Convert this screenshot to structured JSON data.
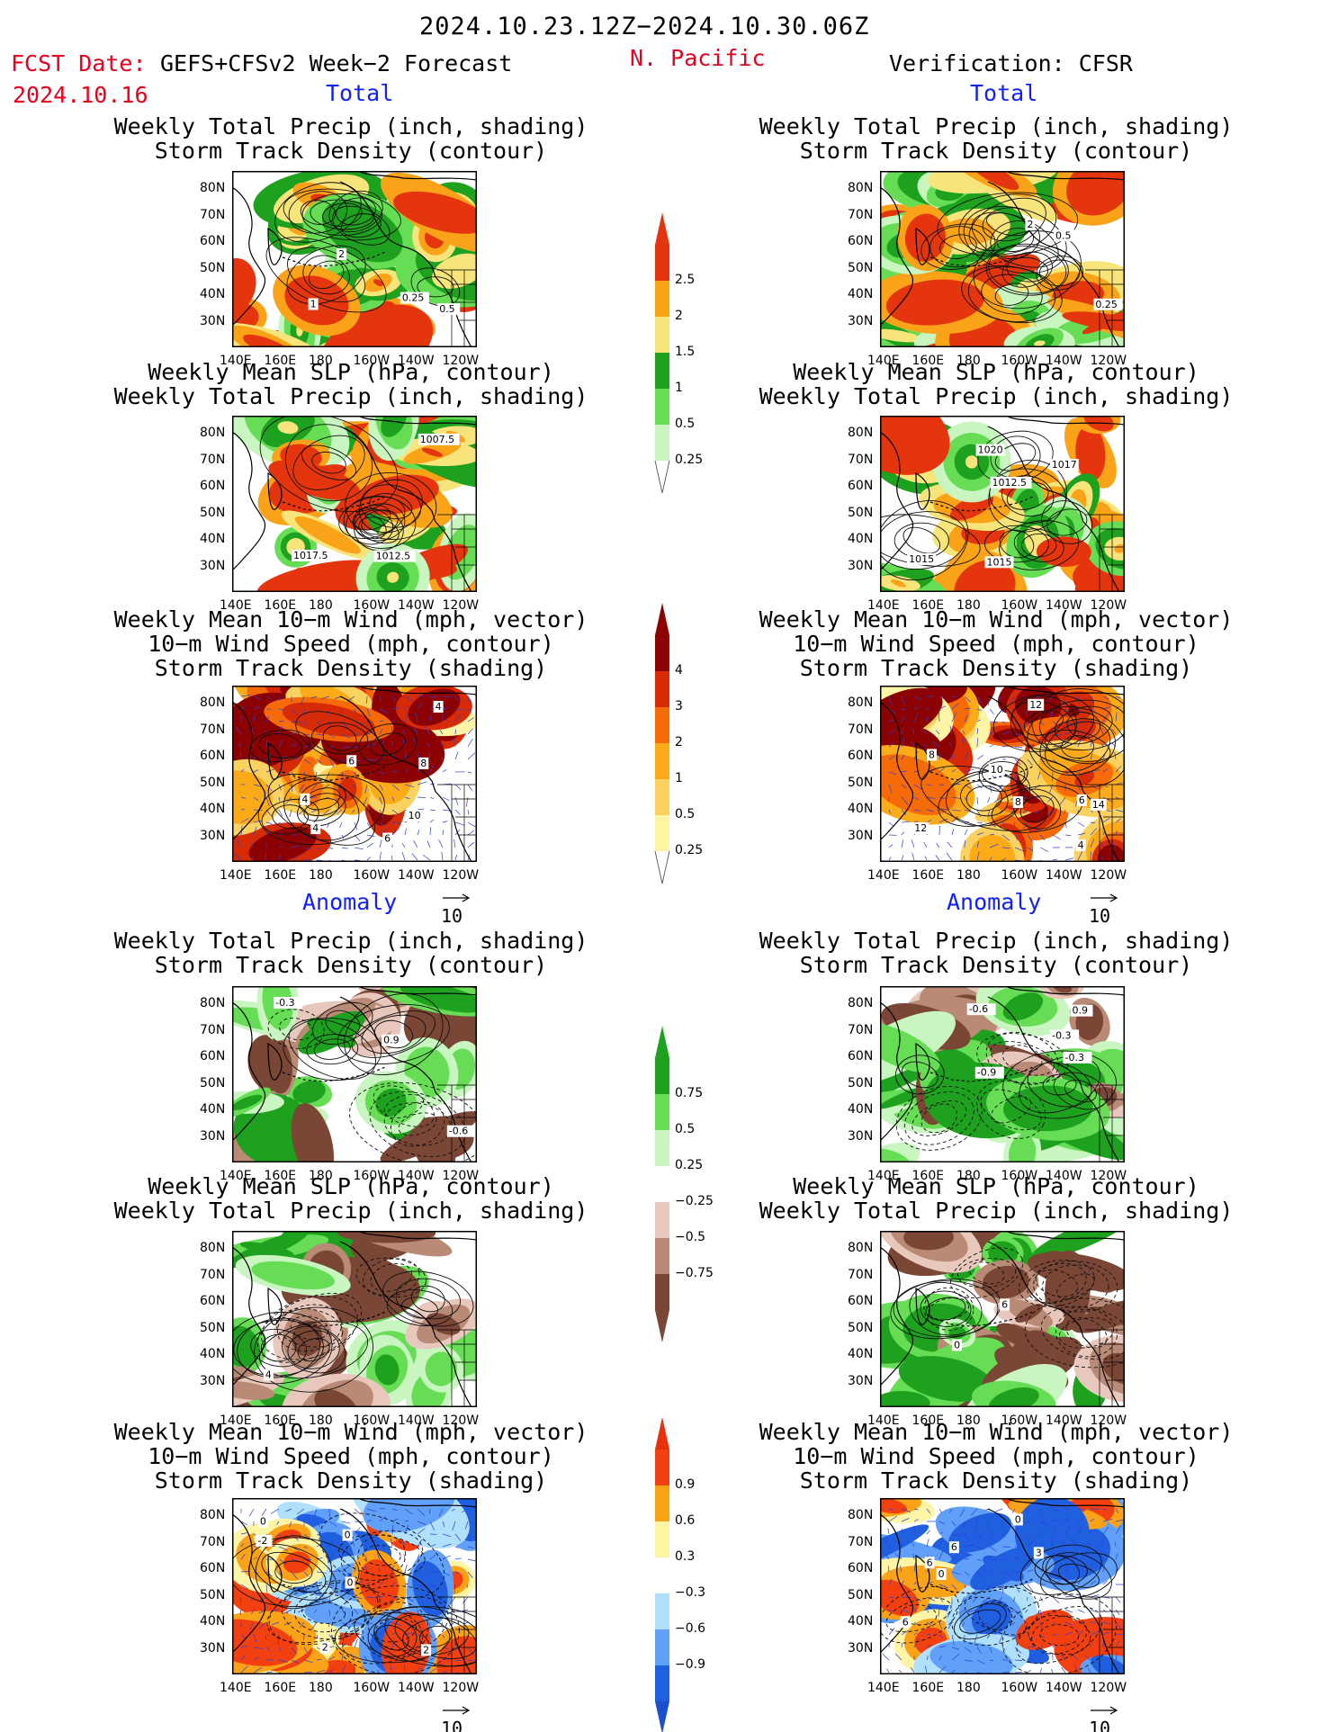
{
  "header": {
    "date_range": "2024.10.23.12Z−2024.10.30.06Z",
    "fcst_label": "FCST Date:",
    "forecast_name": "GEFS+CFSv2 Week−2 Forecast",
    "fcst_date": "2024.10.16",
    "region": "N. Pacific",
    "verification": "Verification: CFSR"
  },
  "sections": {
    "total": "Total",
    "anomaly": "Anomaly"
  },
  "colors": {
    "ocean": "#ffffff",
    "precip": [
      "#c8f5c0",
      "#66dd55",
      "#1ea11e",
      "#f7e47a",
      "#fba318",
      "#e4350e"
    ],
    "std_pos": [
      "#fdf4a6",
      "#fbd160",
      "#fbab18",
      "#f66a08",
      "#d72a06",
      "#8c0202"
    ],
    "precip_anom": [
      "#7a4636",
      "#b98a75",
      "#e8c8bc",
      "#ffffff",
      "#c8f5c0",
      "#66dd55",
      "#1ea11e"
    ],
    "std_anom": [
      "#2060e0",
      "#60a0f8",
      "#b0e0fc",
      "#ffffff",
      "#fdf4a6",
      "#fba318",
      "#f24010"
    ]
  },
  "colorbars": [
    {
      "labels": [
        "2.5",
        "2",
        "1.5",
        "1",
        "0.5",
        "0.25"
      ]
    },
    {
      "labels": [
        "4",
        "3",
        "2",
        "1",
        "0.5",
        "0.25"
      ]
    },
    {
      "labels": [
        "0.75",
        "0.5",
        "0.25",
        "−0.25",
        "−0.5",
        "−0.75"
      ]
    },
    {
      "labels": [
        "0.9",
        "0.6",
        "0.3",
        "−0.3",
        "−0.6",
        "−0.9"
      ]
    }
  ],
  "panel_titles": {
    "precip_std": [
      "Weekly Total Precip (inch, shading)",
      "Storm Track Density (contour)"
    ],
    "slp_precip": [
      "Weekly Mean SLP (hPa, contour)",
      "Weekly Total Precip (inch, shading)"
    ],
    "wind_std": [
      "Weekly Mean 10−m Wind (mph, vector)",
      "10−m Wind Speed (mph, contour)",
      "Storm Track Density (shading)"
    ]
  },
  "map_axes": {
    "lat_ticks": [
      "80N",
      "70N",
      "60N",
      "50N",
      "40N",
      "30N"
    ],
    "lon_ticks": [
      "140E",
      "160E",
      "180",
      "160W",
      "140W",
      "120W"
    ]
  },
  "vector_reference": "10",
  "chart_data": [
    {
      "type": "heatmap",
      "section": "Total",
      "column": "Forecast",
      "title": "Weekly Total Precip (inch, shading) / Storm Track Density (contour)",
      "contour_labels": [
        "2",
        "0.5",
        "0.25",
        "1"
      ]
    },
    {
      "type": "heatmap",
      "section": "Total",
      "column": "Verification",
      "title": "Weekly Total Precip (inch, shading) / Storm Track Density (contour)",
      "contour_labels": [
        "2",
        "0.5",
        "0.25"
      ]
    },
    {
      "type": "heatmap",
      "section": "Total",
      "column": "Forecast",
      "title": "Weekly Mean SLP (hPa, contour) / Weekly Total Precip (inch, shading)",
      "contour_labels": [
        "1007.5",
        "1012.5",
        "1017.5"
      ]
    },
    {
      "type": "heatmap",
      "section": "Total",
      "column": "Verification",
      "title": "Weekly Mean SLP (hPa, contour) / Weekly Total Precip (inch, shading)",
      "contour_labels": [
        "1015",
        "1012.5",
        "1015",
        "1017",
        "1020"
      ]
    },
    {
      "type": "heatmap",
      "section": "Total",
      "column": "Forecast",
      "title": "Weekly Mean 10-m Wind (mph, vector) / 10-m Wind Speed (mph, contour) / Storm Track Density (shading)",
      "contour_labels": [
        "4",
        "4",
        "6",
        "4",
        "6",
        "10",
        "8"
      ]
    },
    {
      "type": "heatmap",
      "section": "Total",
      "column": "Verification",
      "title": "Weekly Mean 10-m Wind (mph, vector) / 10-m Wind Speed (mph, contour) / Storm Track Density (shading)",
      "contour_labels": [
        "10",
        "8",
        "4",
        "12",
        "8",
        "6",
        "12",
        "14"
      ]
    },
    {
      "type": "heatmap",
      "section": "Anomaly",
      "column": "Forecast",
      "title": "Weekly Total Precip (inch, shading) / Storm Track Density (contour)",
      "contour_labels": [
        "0.9",
        "-0.6",
        "-0.3"
      ]
    },
    {
      "type": "heatmap",
      "section": "Anomaly",
      "column": "Verification",
      "title": "Weekly Total Precip (inch, shading) / Storm Track Density (contour)",
      "contour_labels": [
        "0.9",
        "-0.3",
        "-0.6",
        "-0.9",
        "-0.3"
      ]
    },
    {
      "type": "heatmap",
      "section": "Anomaly",
      "column": "Forecast",
      "title": "Weekly Mean SLP (hPa, contour) / Weekly Total Precip (inch, shading)",
      "contour_labels": [
        "4"
      ]
    },
    {
      "type": "heatmap",
      "section": "Anomaly",
      "column": "Verification",
      "title": "Weekly Mean SLP (hPa, contour) / Weekly Total Precip (inch, shading)",
      "contour_labels": [
        "0",
        "6"
      ]
    },
    {
      "type": "heatmap",
      "section": "Anomaly",
      "column": "Forecast",
      "title": "Weekly Mean 10-m Wind (mph, vector) / 10-m Wind Speed (mph, contour) / Storm Track Density (shading)",
      "contour_labels": [
        "0",
        "2",
        "-2",
        "2",
        "0",
        "0"
      ]
    },
    {
      "type": "heatmap",
      "section": "Anomaly",
      "column": "Verification",
      "title": "Weekly Mean 10-m Wind (mph, vector) / 10-m Wind Speed (mph, contour) / Storm Track Density (shading)",
      "contour_labels": [
        "3",
        "0",
        "6",
        "6",
        "6",
        "0"
      ]
    }
  ]
}
